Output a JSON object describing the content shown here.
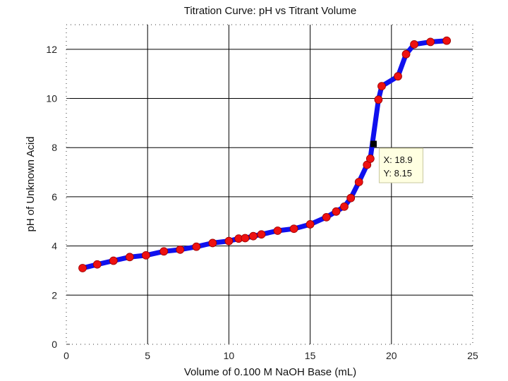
{
  "chart_data": {
    "type": "line",
    "title": "Titration Curve: pH vs Titrant Volume",
    "xlabel": "Volume of 0.100 M NaOH Base (mL)",
    "ylabel": "pH of Unknown Acid",
    "xlim": [
      0,
      25
    ],
    "ylim": [
      0,
      13
    ],
    "xticks": [
      0,
      5,
      10,
      15,
      20,
      25
    ],
    "yticks": [
      0,
      2,
      4,
      6,
      8,
      10,
      12
    ],
    "grid": true,
    "line_color": "#1010ee",
    "marker_color": "#ee1111",
    "series": [
      {
        "name": "pH",
        "x": [
          1.0,
          1.9,
          2.9,
          3.9,
          4.9,
          6.0,
          7.0,
          8.0,
          9.0,
          10.0,
          10.6,
          11.0,
          11.5,
          12.0,
          13.0,
          14.0,
          15.0,
          16.0,
          16.6,
          17.1,
          17.5,
          18.0,
          18.5,
          18.7,
          19.2,
          19.4,
          20.4,
          20.9,
          21.4,
          22.4,
          23.4
        ],
        "y": [
          3.1,
          3.25,
          3.4,
          3.55,
          3.62,
          3.78,
          3.85,
          3.97,
          4.12,
          4.2,
          4.3,
          4.32,
          4.4,
          4.47,
          4.62,
          4.7,
          4.88,
          5.17,
          5.4,
          5.6,
          5.95,
          6.6,
          7.3,
          7.55,
          9.95,
          10.5,
          10.9,
          11.8,
          12.2,
          12.3,
          12.35
        ]
      }
    ],
    "datatip": {
      "x": 18.9,
      "y": 8.15,
      "x_label": "X: 18.9",
      "y_label": "Y: 8.15"
    }
  }
}
